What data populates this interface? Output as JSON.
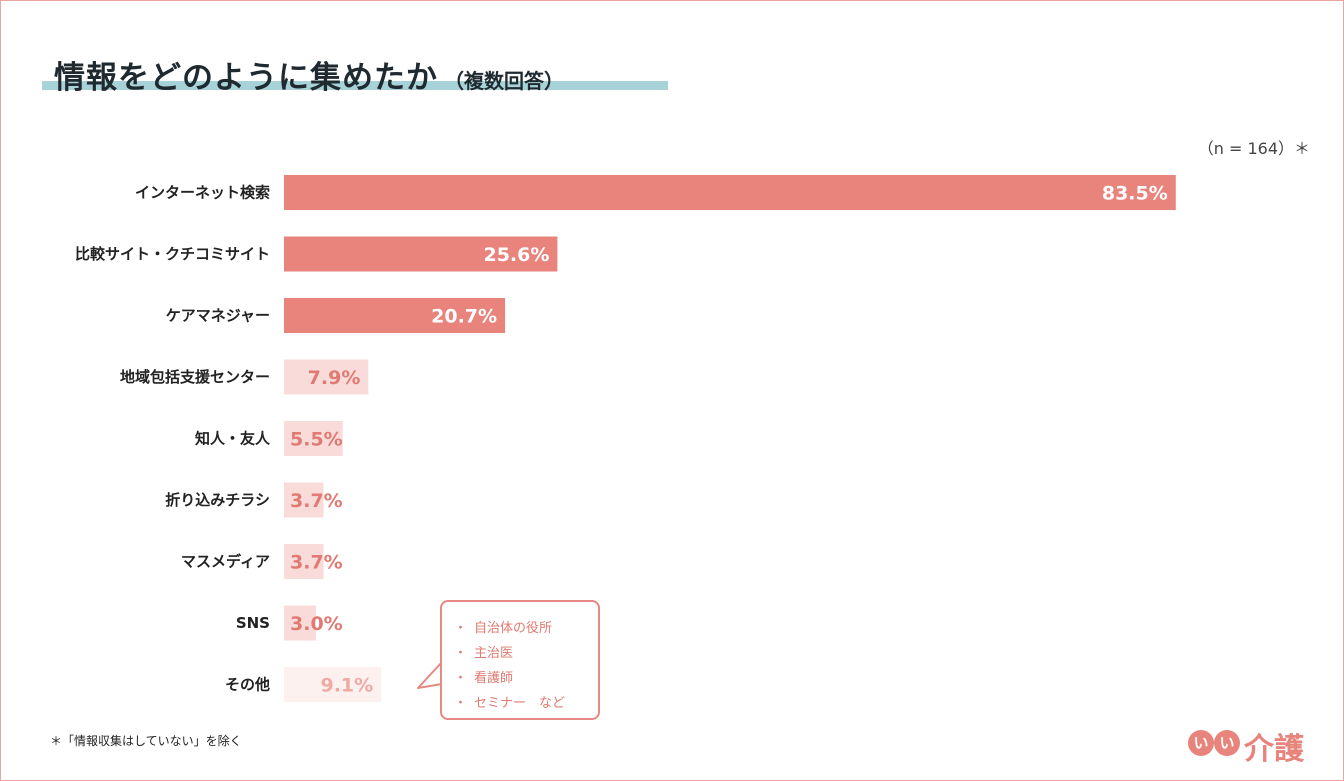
{
  "title": {
    "main": "情報をどのように集めたか",
    "sub": "（複数回答）"
  },
  "sample_note": "（n = 164）＊",
  "chart_data": {
    "type": "bar",
    "orientation": "horizontal",
    "categories": [
      "インターネット検索",
      "比較サイト・クチコミサイト",
      "ケアマネジャー",
      "地域包括支援センター",
      "知人・友人",
      "折り込みチラシ",
      "マスメディア",
      "SNS",
      "その他"
    ],
    "values": [
      83.5,
      25.6,
      20.7,
      7.9,
      5.5,
      3.7,
      3.7,
      3.0,
      9.1
    ],
    "value_labels": [
      "83.5%",
      "25.6%",
      "20.7%",
      "7.9%",
      "5.5%",
      "3.7%",
      "3.7%",
      "3.0%",
      "9.1%"
    ],
    "unit": "%",
    "xlim": [
      0,
      100
    ],
    "grid": false,
    "legend": "none",
    "colors": {
      "strong": "#e8847c",
      "light": "#f9dcd9",
      "other": "#fdf1ef",
      "label_on_strong": "#ffffff",
      "label_on_light": "#e07a72",
      "label_on_other": "#f0aaa3"
    }
  },
  "callout": {
    "items": [
      "自治体の役所",
      "主治医",
      "看護師",
      "セミナー　など"
    ],
    "bullet": "・"
  },
  "footnote": "＊「情報収集はしていない」を除く",
  "logo": {
    "circle_1": "い",
    "circle_2": "い",
    "text": "介護"
  }
}
